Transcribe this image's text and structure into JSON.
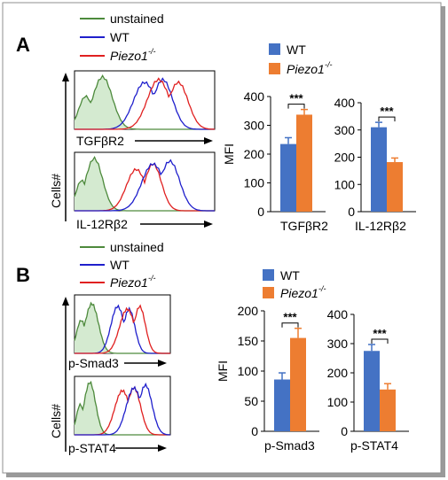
{
  "figure": {
    "panel_a_letter": "A",
    "panel_b_letter": "B",
    "cells_label": "Cells#",
    "legend_histogram": [
      {
        "label": "unstained",
        "color": "#4d8a3c"
      },
      {
        "label": "WT",
        "color": "#1f1fcc"
      },
      {
        "label": "Piezo1",
        "suffix": "-/-",
        "italic": true,
        "color": "#e02020"
      }
    ],
    "legend_bar": [
      {
        "label": "WT",
        "color": "#4472c4"
      },
      {
        "label": "Piezo1",
        "suffix": "-/-",
        "italic": true,
        "color": "#ed7d31"
      }
    ],
    "histogram_axis_labels": {
      "a_top": "TGFβR2",
      "a_bottom": "IL-12Rβ2",
      "b_top": "p-Smad3",
      "b_bottom": "p-STAT4"
    }
  },
  "chart_data": [
    {
      "type": "bar",
      "panel": "A",
      "ylabel": "MFI",
      "xlabel": "TGFβR2",
      "ylim": [
        0,
        400
      ],
      "yticks": [
        0,
        100,
        200,
        300,
        400
      ],
      "series": [
        {
          "name": "WT",
          "values": [
            235
          ],
          "error": [
            22
          ]
        },
        {
          "name": "Piezo1-/-",
          "values": [
            337
          ],
          "error": [
            18
          ]
        }
      ],
      "significance": "***"
    },
    {
      "type": "bar",
      "panel": "A",
      "xlabel": "IL-12Rβ2",
      "ylim": [
        0,
        400
      ],
      "yticks": [
        0,
        100,
        200,
        300,
        400
      ],
      "series": [
        {
          "name": "WT",
          "values": [
            310
          ],
          "error": [
            18
          ]
        },
        {
          "name": "Piezo1-/-",
          "values": [
            182
          ],
          "error": [
            15
          ]
        }
      ],
      "significance": "***"
    },
    {
      "type": "bar",
      "panel": "B",
      "ylabel": "MFI",
      "xlabel": "p-Smad3",
      "ylim": [
        0,
        200
      ],
      "yticks": [
        0,
        50,
        100,
        150,
        200
      ],
      "series": [
        {
          "name": "WT",
          "values": [
            86
          ],
          "error": [
            11
          ]
        },
        {
          "name": "Piezo1-/-",
          "values": [
            155
          ],
          "error": [
            16
          ]
        }
      ],
      "significance": "***"
    },
    {
      "type": "bar",
      "panel": "B",
      "xlabel": "p-STAT4",
      "ylim": [
        0,
        400
      ],
      "yticks": [
        0,
        100,
        200,
        300,
        400
      ],
      "series": [
        {
          "name": "WT",
          "values": [
            275
          ],
          "error": [
            22
          ]
        },
        {
          "name": "Piezo1-/-",
          "values": [
            143
          ],
          "error": [
            20
          ]
        }
      ],
      "significance": "***"
    }
  ]
}
